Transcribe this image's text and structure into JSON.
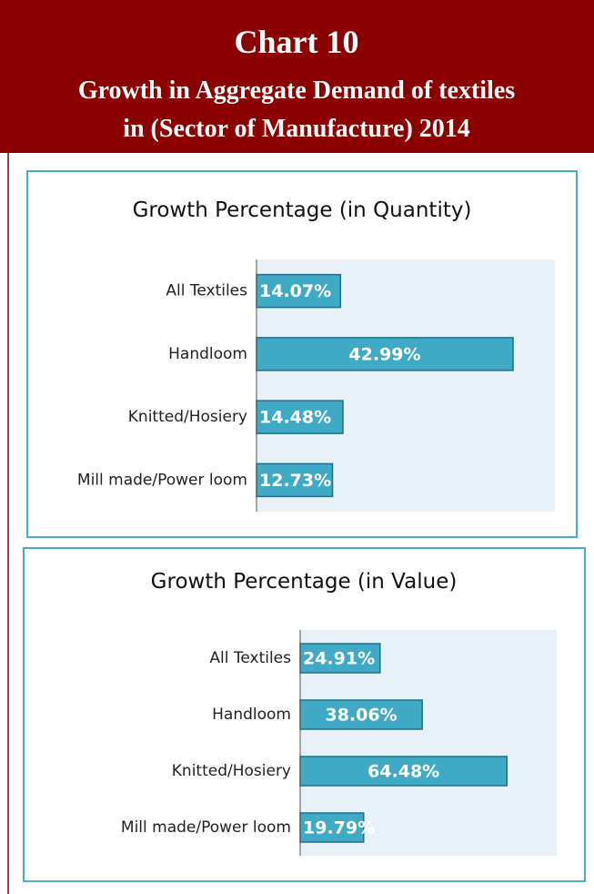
{
  "header": {
    "label": "Chart 10",
    "title_lines": [
      "Growth in Aggregate Demand of textiles",
      "in (Sector of Manufacture) 2014"
    ]
  },
  "chart_data": [
    {
      "type": "barh",
      "title": "Growth Percentage (in Quantity)",
      "categories": [
        "All Textiles",
        "Handloom",
        "Knitted/Hosiery",
        "Mill made/Power loom"
      ],
      "values": [
        14.07,
        42.99,
        14.48,
        12.73
      ],
      "value_labels": [
        "14.07%",
        "42.99%",
        "14.48%",
        "12.73%"
      ],
      "color": "#3eaac6",
      "xlim": [
        0,
        50
      ]
    },
    {
      "type": "barh",
      "title": "Growth Percentage (in Value)",
      "categories": [
        "All Textiles",
        "Handloom",
        "Knitted/Hosiery",
        "Mill made/Power loom"
      ],
      "values": [
        24.91,
        38.06,
        64.48,
        19.79
      ],
      "value_labels": [
        "24.91%",
        "38.06%",
        "64.48%",
        "19.79%"
      ],
      "color": "#3eaac6",
      "xlim": [
        0,
        80
      ]
    }
  ]
}
